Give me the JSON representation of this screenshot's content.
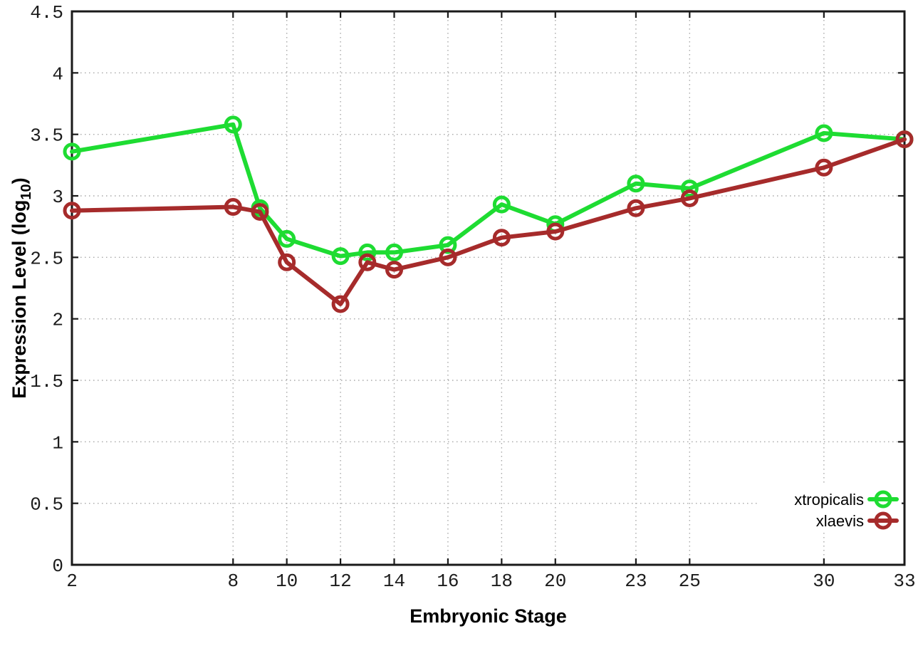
{
  "chart_data": {
    "type": "line",
    "title": "",
    "xlabel": "Embryonic Stage",
    "ylabel": "Expression Level (log10)",
    "ylabel_parts": {
      "pre": "Expression Level (log",
      "sub": "10",
      "post": ")"
    },
    "x": [
      2,
      8,
      9,
      10,
      12,
      13,
      14,
      16,
      18,
      20,
      23,
      25,
      30,
      33
    ],
    "series": [
      {
        "name": "xtropicalis",
        "color": "#1edc32",
        "values": [
          3.36,
          3.58,
          2.9,
          2.65,
          2.51,
          2.54,
          2.54,
          2.6,
          2.93,
          2.77,
          3.1,
          3.06,
          3.51,
          3.46
        ]
      },
      {
        "name": "xlaevis",
        "color": "#a62b2b",
        "values": [
          2.88,
          2.91,
          2.87,
          2.46,
          2.12,
          2.46,
          2.4,
          2.5,
          2.66,
          2.71,
          2.9,
          2.98,
          3.23,
          3.46
        ]
      }
    ],
    "xticks": [
      2,
      8,
      10,
      12,
      14,
      16,
      18,
      20,
      23,
      25,
      30,
      33
    ],
    "yticks": [
      0,
      0.5,
      1,
      1.5,
      2,
      2.5,
      3,
      3.5,
      4,
      4.5
    ],
    "xlim": [
      2,
      33
    ],
    "ylim": [
      0,
      4.5
    ],
    "grid": true,
    "legend_position": "bottom-right",
    "marker": "open-circle",
    "colors": {
      "frame": "#1a1a1a",
      "grid": "#a8a8a8",
      "tick_text": "#1c1c1c",
      "title_text": "#000000",
      "background": "#ffffff"
    }
  }
}
